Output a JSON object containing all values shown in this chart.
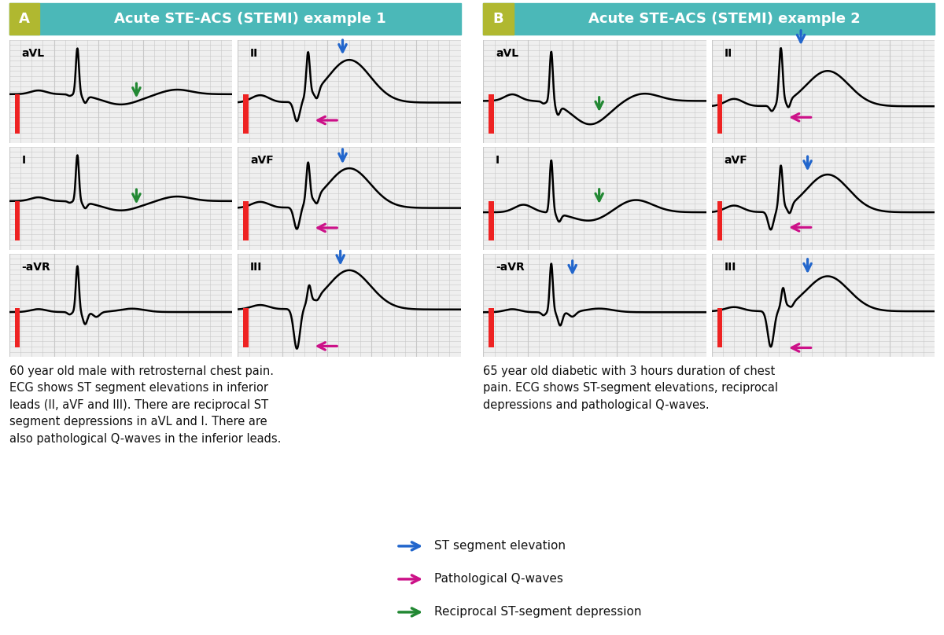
{
  "title_a": "Acute STE-ACS (STEMI) example 1",
  "title_b": "Acute STE-ACS (STEMI) example 2",
  "header_color": "#4BB8B8",
  "header_label_color": "#B0B830",
  "bg_color": "#FFFFFF",
  "grid_color": "#C8C8C8",
  "ecg_color": "#000000",
  "cal_color": "#EE2222",
  "blue_arrow": "#2266CC",
  "pink_arrow": "#CC1188",
  "green_arrow": "#228833",
  "text_color": "#111111",
  "caption_a": "60 year old male with retrosternal chest pain.\nECG shows ST segment elevations in inferior\nleads (II, aVF and III). There are reciprocal ST\nsegment depressions in aVL and I. There are\nalso pathological Q-waves in the inferior leads.",
  "caption_b": "65 year old diabetic with 3 hours duration of chest\npain. ECG shows ST-segment elevations, reciprocal\ndepressions and pathological Q-waves.",
  "legend": [
    {
      "color": "#2266CC",
      "label": "ST segment elevation"
    },
    {
      "color": "#CC1188",
      "label": "Pathological Q-waves"
    },
    {
      "color": "#228833",
      "label": "Reciprocal ST-segment depression"
    }
  ]
}
